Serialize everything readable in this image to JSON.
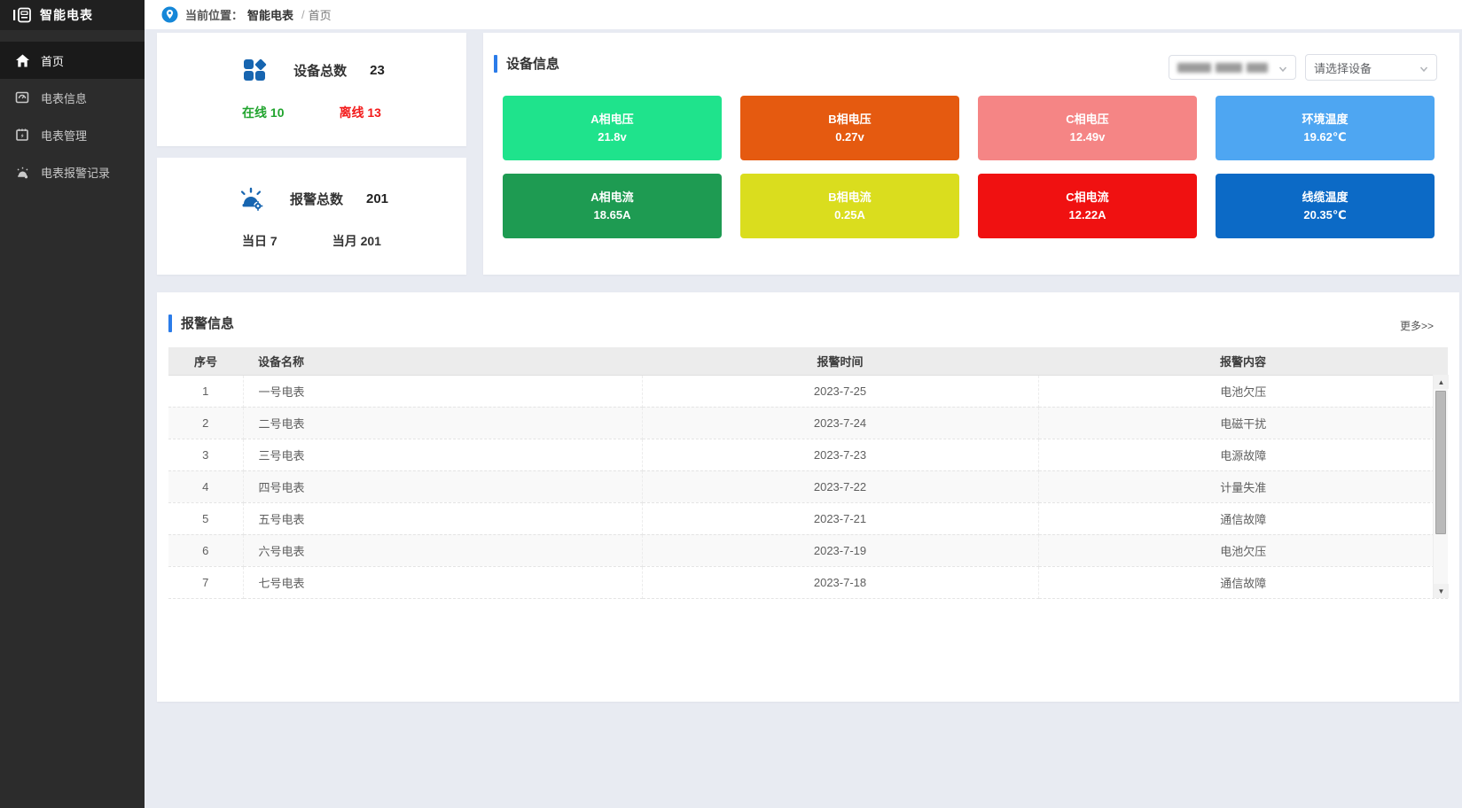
{
  "app": {
    "title": "智能电表"
  },
  "sidebar": {
    "items": [
      {
        "label": "首页",
        "active": true
      },
      {
        "label": "电表信息",
        "active": false
      },
      {
        "label": "电表管理",
        "active": false
      },
      {
        "label": "电表报警记录",
        "active": false
      }
    ]
  },
  "breadcrumb": {
    "prefix": "当前位置：",
    "root": "智能电表",
    "separator": "/",
    "current": "首页"
  },
  "stats": {
    "device": {
      "label": "设备总数",
      "value": "23",
      "online_label": "在线",
      "online": "10",
      "offline_label": "离线",
      "offline": "13"
    },
    "alarm": {
      "label": "报警总数",
      "value": "201",
      "today_label": "当日",
      "today": "7",
      "month_label": "当月",
      "month": "201"
    }
  },
  "device_info": {
    "title": "设备信息",
    "group_select_redacted": true,
    "device_select_placeholder": "请选择设备",
    "tiles": [
      {
        "label": "A相电压",
        "value": "21.8v",
        "color": "#1fe38c"
      },
      {
        "label": "B相电压",
        "value": "0.27v",
        "color": "#e55a10"
      },
      {
        "label": "C相电压",
        "value": "12.49v",
        "color": "#f58585"
      },
      {
        "label": "环境温度",
        "value": "19.62℃",
        "color": "#4ea6f2"
      },
      {
        "label": "A相电流",
        "value": "18.65A",
        "color": "#1e9b52"
      },
      {
        "label": "B相电流",
        "value": "0.25A",
        "color": "#dadd1e"
      },
      {
        "label": "C相电流",
        "value": "12.22A",
        "color": "#f01111"
      },
      {
        "label": "线缆温度",
        "value": "20.35℃",
        "color": "#0c6ac6"
      }
    ]
  },
  "alarm_info": {
    "title": "报警信息",
    "more_label": "更多>>",
    "table": {
      "headers": [
        "序号",
        "设备名称",
        "报警时间",
        "报警内容"
      ],
      "rows": [
        [
          "1",
          "一号电表",
          "2023-7-25",
          "电池欠压"
        ],
        [
          "2",
          "二号电表",
          "2023-7-24",
          "电磁干扰"
        ],
        [
          "3",
          "三号电表",
          "2023-7-23",
          "电源故障"
        ],
        [
          "4",
          "四号电表",
          "2023-7-22",
          "计量失准"
        ],
        [
          "5",
          "五号电表",
          "2023-7-21",
          "通信故障"
        ],
        [
          "6",
          "六号电表",
          "2023-7-19",
          "电池欠压"
        ],
        [
          "7",
          "七号电表",
          "2023-7-18",
          "通信故障"
        ]
      ]
    }
  },
  "colors": {
    "accent_blue": "#2b7ce9",
    "icon_blue": "#1765b0",
    "online_green": "#21a42e",
    "offline_red": "#f31b1b"
  }
}
